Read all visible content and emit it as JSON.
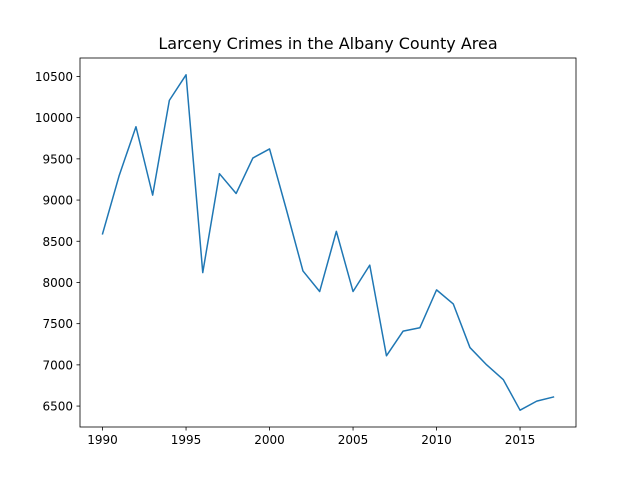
{
  "chart_data": {
    "type": "line",
    "title": "Larceny Crimes in the Albany County Area",
    "xlabel": "",
    "ylabel": "",
    "x": [
      1990,
      1991,
      1992,
      1993,
      1994,
      1995,
      1996,
      1997,
      1998,
      1999,
      2000,
      2001,
      2002,
      2003,
      2004,
      2005,
      2006,
      2007,
      2008,
      2009,
      2010,
      2011,
      2012,
      2013,
      2014,
      2015,
      2016,
      2017
    ],
    "series": [
      {
        "name": "",
        "color": "#1f77b4",
        "values": [
          8590,
          9300,
          9890,
          9060,
          10210,
          10520,
          8120,
          9320,
          9080,
          9510,
          9620,
          8890,
          8140,
          7890,
          8620,
          7890,
          8210,
          7110,
          7410,
          7450,
          7910,
          7740,
          7210,
          7000,
          6820,
          6450,
          6560,
          6610
        ]
      }
    ],
    "x_ticks": [
      "1990",
      "1995",
      "2000",
      "2005",
      "2010",
      "2015"
    ],
    "y_ticks": [
      "6500",
      "7000",
      "7500",
      "8000",
      "8500",
      "9000",
      "9500",
      "10000",
      "10500"
    ],
    "xlim": [
      1988.65,
      2018.35
    ],
    "ylim": [
      6246,
      10724
    ],
    "grid": false,
    "legend": "none"
  }
}
